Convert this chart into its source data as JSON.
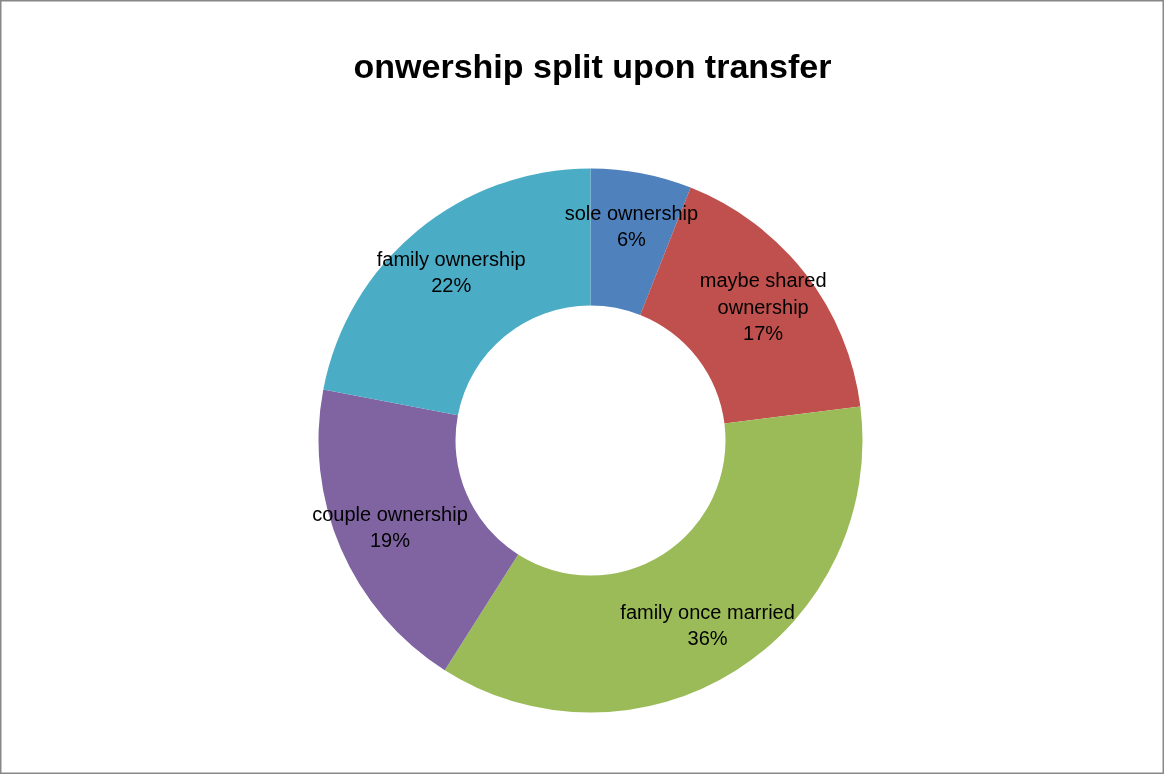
{
  "chart_data": {
    "type": "donut",
    "title": "onwership split upon transfer",
    "categories": [
      "sole ownership",
      "maybe shared ownership",
      "family once married",
      "couple ownership",
      "family ownership"
    ],
    "values": [
      6,
      17,
      36,
      19,
      22
    ],
    "colors": [
      "#4f81bd",
      "#c0504d",
      "#9bbb59",
      "#8064a2",
      "#4bacc6"
    ],
    "value_labels": [
      "6%",
      "17%",
      "36%",
      "19%",
      "22%"
    ]
  }
}
